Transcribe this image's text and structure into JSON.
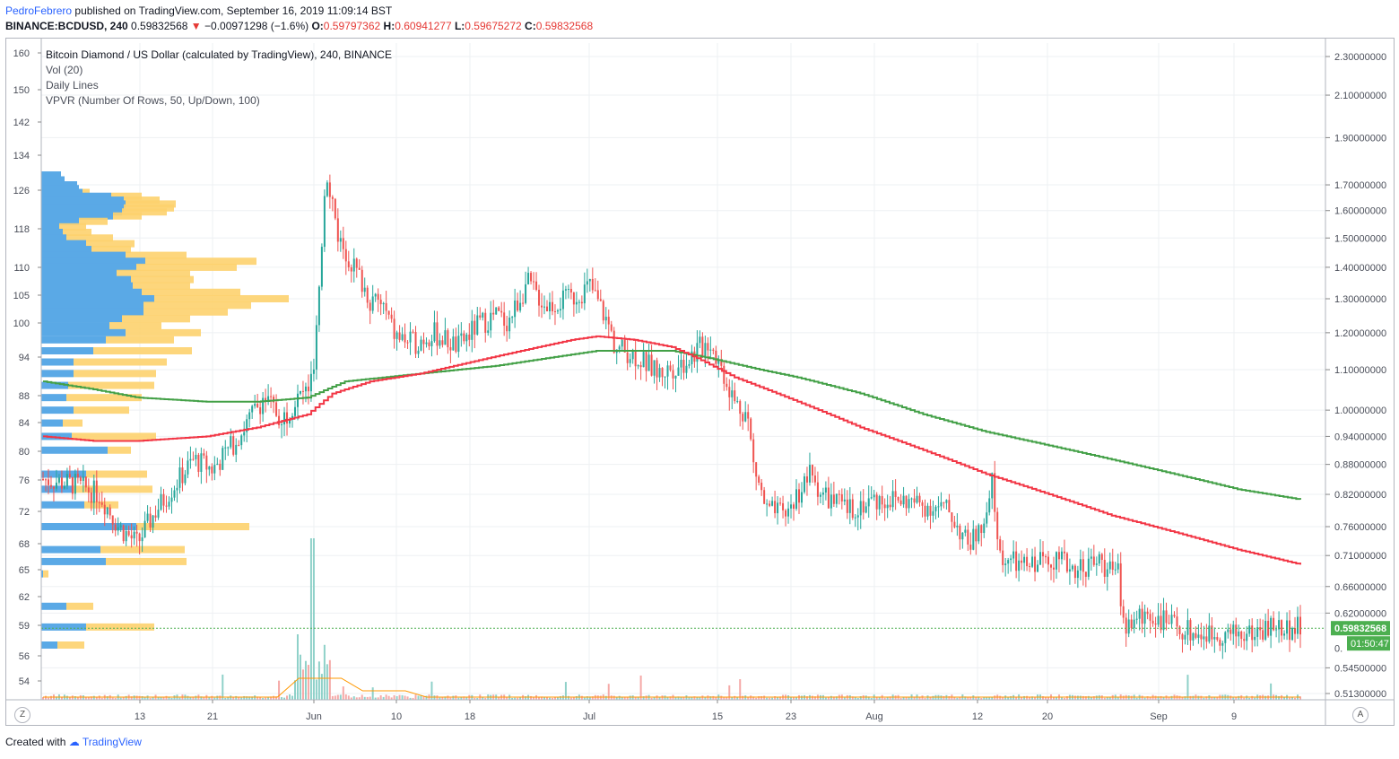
{
  "header": {
    "author": "PedroFebrero",
    "published": "published on TradingView.com, September 16, 2019 11:09:14 BST",
    "symbol": "BINANCE:BCDUSD, 240",
    "last": "0.59832568",
    "arrow": "▼",
    "change": "−0.00971298 (−1.6%)",
    "o_label": "O:",
    "o_value": "0.59797362",
    "h_label": "H:",
    "h_value": "0.60941277",
    "l_label": "L:",
    "l_value": "0.59675272",
    "c_label": "C:",
    "c_value": "0.59832568"
  },
  "legend": {
    "title": "Bitcoin Diamond / US Dollar (calculated by TradingView), 240, BINANCE",
    "vol": "Vol (20)",
    "lines": "Daily Lines",
    "vpvr": "VPVR (Number Of Rows, 50, Up/Down, 100)"
  },
  "footer": {
    "created": "Created with",
    "brand": "TradingView"
  },
  "corner_left": "Z",
  "corner_right": "A",
  "colors": {
    "up": "#26a69a",
    "down": "#ef5350",
    "ma_red": "#f23645",
    "ma_green": "#43a047",
    "vp_up": "#5aa9e6",
    "vp_down": "#fdd26e",
    "price_tag": "#4caf50"
  },
  "chart_data": {
    "type": "candlestick",
    "title": "Bitcoin Diamond / US Dollar (calculated by TradingView), 240, BINANCE",
    "left_axis_ticks": [
      "160",
      "150",
      "142",
      "134",
      "126",
      "118",
      "110",
      "105",
      "100",
      "94",
      "88",
      "84",
      "80",
      "76",
      "72",
      "68",
      "65",
      "62",
      "59",
      "56",
      "54"
    ],
    "right_axis_ticks": [
      "2.30000000",
      "2.10000000",
      "1.90000000",
      "1.70000000",
      "1.60000000",
      "1.50000000",
      "1.40000000",
      "1.30000000",
      "1.20000000",
      "1.10000000",
      "1.00000000",
      "0.94000000",
      "0.88000000",
      "0.82000000",
      "0.76000000",
      "0.71000000",
      "0.66000000",
      "0.62000000",
      "0.54500000",
      "0.51300000"
    ],
    "right_axis_partial": "0.",
    "x_ticks": [
      "13",
      "21",
      "Jun",
      "10",
      "18",
      "Jul",
      "15",
      "23",
      "Aug",
      "12",
      "20",
      "Sep",
      "9"
    ],
    "last_price": "0.59832568",
    "countdown": "01:50:47",
    "price_path": [
      [
        0,
        0.85
      ],
      [
        0.025,
        0.84
      ],
      [
        0.045,
        0.82
      ],
      [
        0.06,
        0.76
      ],
      [
        0.075,
        0.73
      ],
      [
        0.09,
        0.79
      ],
      [
        0.105,
        0.84
      ],
      [
        0.12,
        0.89
      ],
      [
        0.135,
        0.87
      ],
      [
        0.15,
        0.92
      ],
      [
        0.16,
        0.96
      ],
      [
        0.175,
        1.03
      ],
      [
        0.19,
        0.98
      ],
      [
        0.2,
        1.02
      ],
      [
        0.21,
        1.05
      ],
      [
        0.215,
        1.08
      ],
      [
        0.22,
        1.32
      ],
      [
        0.225,
        1.78
      ],
      [
        0.235,
        1.5
      ],
      [
        0.25,
        1.38
      ],
      [
        0.26,
        1.3
      ],
      [
        0.27,
        1.28
      ],
      [
        0.28,
        1.19
      ],
      [
        0.295,
        1.17
      ],
      [
        0.31,
        1.2
      ],
      [
        0.33,
        1.16
      ],
      [
        0.345,
        1.22
      ],
      [
        0.36,
        1.25
      ],
      [
        0.37,
        1.23
      ],
      [
        0.385,
        1.35
      ],
      [
        0.4,
        1.28
      ],
      [
        0.42,
        1.3
      ],
      [
        0.435,
        1.34
      ],
      [
        0.45,
        1.22
      ],
      [
        0.455,
        1.16
      ],
      [
        0.47,
        1.14
      ],
      [
        0.49,
        1.09
      ],
      [
        0.51,
        1.12
      ],
      [
        0.53,
        1.18
      ],
      [
        0.54,
        1.1
      ],
      [
        0.55,
        1.02
      ],
      [
        0.56,
        0.99
      ],
      [
        0.565,
        0.88
      ],
      [
        0.575,
        0.79
      ],
      [
        0.59,
        0.78
      ],
      [
        0.6,
        0.82
      ],
      [
        0.61,
        0.86
      ],
      [
        0.62,
        0.82
      ],
      [
        0.64,
        0.79
      ],
      [
        0.66,
        0.81
      ],
      [
        0.68,
        0.81
      ],
      [
        0.7,
        0.8
      ],
      [
        0.72,
        0.79
      ],
      [
        0.735,
        0.73
      ],
      [
        0.75,
        0.76
      ],
      [
        0.755,
        0.85
      ],
      [
        0.76,
        0.71
      ],
      [
        0.78,
        0.69
      ],
      [
        0.8,
        0.71
      ],
      [
        0.82,
        0.69
      ],
      [
        0.84,
        0.7
      ],
      [
        0.855,
        0.68
      ],
      [
        0.86,
        0.6
      ],
      [
        0.88,
        0.62
      ],
      [
        0.9,
        0.6
      ],
      [
        0.92,
        0.59
      ],
      [
        0.94,
        0.59
      ],
      [
        0.96,
        0.59
      ],
      [
        0.975,
        0.6
      ],
      [
        1.0,
        0.598
      ]
    ],
    "ma_red": [
      [
        0,
        0.94
      ],
      [
        0.04,
        0.93
      ],
      [
        0.075,
        0.93
      ],
      [
        0.13,
        0.94
      ],
      [
        0.17,
        0.96
      ],
      [
        0.21,
        0.99
      ],
      [
        0.23,
        1.04
      ],
      [
        0.26,
        1.07
      ],
      [
        0.3,
        1.09
      ],
      [
        0.34,
        1.12
      ],
      [
        0.38,
        1.15
      ],
      [
        0.42,
        1.18
      ],
      [
        0.44,
        1.19
      ],
      [
        0.47,
        1.18
      ],
      [
        0.5,
        1.16
      ],
      [
        0.52,
        1.13
      ],
      [
        0.55,
        1.08
      ],
      [
        0.6,
        1.02
      ],
      [
        0.65,
        0.96
      ],
      [
        0.7,
        0.91
      ],
      [
        0.75,
        0.86
      ],
      [
        0.8,
        0.82
      ],
      [
        0.85,
        0.78
      ],
      [
        0.9,
        0.75
      ],
      [
        0.95,
        0.72
      ],
      [
        1.0,
        0.695
      ]
    ],
    "ma_green": [
      [
        0,
        1.07
      ],
      [
        0.04,
        1.05
      ],
      [
        0.075,
        1.03
      ],
      [
        0.13,
        1.02
      ],
      [
        0.17,
        1.02
      ],
      [
        0.21,
        1.03
      ],
      [
        0.24,
        1.07
      ],
      [
        0.3,
        1.09
      ],
      [
        0.36,
        1.11
      ],
      [
        0.4,
        1.13
      ],
      [
        0.44,
        1.15
      ],
      [
        0.47,
        1.15
      ],
      [
        0.5,
        1.15
      ],
      [
        0.53,
        1.13
      ],
      [
        0.57,
        1.1
      ],
      [
        0.6,
        1.08
      ],
      [
        0.65,
        1.04
      ],
      [
        0.7,
        0.99
      ],
      [
        0.75,
        0.95
      ],
      [
        0.8,
        0.92
      ],
      [
        0.85,
        0.89
      ],
      [
        0.9,
        0.86
      ],
      [
        0.95,
        0.83
      ],
      [
        1.0,
        0.81
      ]
    ],
    "volume_profile": [
      {
        "price": 1.74,
        "up": 22,
        "down": 0
      },
      {
        "price": 1.72,
        "up": 26,
        "down": 0
      },
      {
        "price": 1.7,
        "up": 40,
        "down": 0
      },
      {
        "price": 1.685,
        "up": 42,
        "down": 0
      },
      {
        "price": 1.67,
        "up": 46,
        "down": 8
      },
      {
        "price": 1.655,
        "up": 78,
        "down": 34
      },
      {
        "price": 1.64,
        "up": 92,
        "down": 40
      },
      {
        "price": 1.625,
        "up": 94,
        "down": 56
      },
      {
        "price": 1.61,
        "up": 92,
        "down": 56
      },
      {
        "price": 1.595,
        "up": 90,
        "down": 50
      },
      {
        "price": 1.58,
        "up": 80,
        "down": 32
      },
      {
        "price": 1.56,
        "up": 42,
        "down": 32
      },
      {
        "price": 1.54,
        "up": 20,
        "down": 30
      },
      {
        "price": 1.52,
        "up": 24,
        "down": 32
      },
      {
        "price": 1.5,
        "up": 28,
        "down": 52
      },
      {
        "price": 1.48,
        "up": 50,
        "down": 54
      },
      {
        "price": 1.46,
        "up": 56,
        "down": 44
      },
      {
        "price": 1.44,
        "up": 94,
        "down": 68
      },
      {
        "price": 1.42,
        "up": 116,
        "down": 124
      },
      {
        "price": 1.4,
        "up": 106,
        "down": 112
      },
      {
        "price": 1.38,
        "up": 84,
        "down": 82
      },
      {
        "price": 1.36,
        "up": 100,
        "down": 70
      },
      {
        "price": 1.34,
        "up": 102,
        "down": 64
      },
      {
        "price": 1.32,
        "up": 112,
        "down": 110
      },
      {
        "price": 1.3,
        "up": 126,
        "down": 150
      },
      {
        "price": 1.28,
        "up": 114,
        "down": 120
      },
      {
        "price": 1.26,
        "up": 114,
        "down": 94
      },
      {
        "price": 1.24,
        "up": 90,
        "down": 76
      },
      {
        "price": 1.22,
        "up": 76,
        "down": 58
      },
      {
        "price": 1.2,
        "up": 94,
        "down": 84
      },
      {
        "price": 1.18,
        "up": 72,
        "down": 76
      },
      {
        "price": 1.15,
        "up": 58,
        "down": 110
      },
      {
        "price": 1.12,
        "up": 36,
        "down": 104
      },
      {
        "price": 1.09,
        "up": 36,
        "down": 92
      },
      {
        "price": 1.06,
        "up": 30,
        "down": 96
      },
      {
        "price": 1.03,
        "up": 28,
        "down": 84
      },
      {
        "price": 1.0,
        "up": 36,
        "down": 62
      },
      {
        "price": 0.97,
        "up": 24,
        "down": 22
      },
      {
        "price": 0.94,
        "up": 34,
        "down": 94
      },
      {
        "price": 0.91,
        "up": 74,
        "down": 26
      },
      {
        "price": 0.86,
        "up": 50,
        "down": 68
      },
      {
        "price": 0.83,
        "up": 36,
        "down": 88
      },
      {
        "price": 0.8,
        "up": 48,
        "down": 38
      },
      {
        "price": 0.76,
        "up": 106,
        "down": 126
      },
      {
        "price": 0.72,
        "up": 66,
        "down": 94
      },
      {
        "price": 0.7,
        "up": 72,
        "down": 90
      },
      {
        "price": 0.68,
        "up": 2,
        "down": 6
      },
      {
        "price": 0.63,
        "up": 28,
        "down": 30
      },
      {
        "price": 0.6,
        "up": 50,
        "down": 76
      },
      {
        "price": 0.575,
        "up": 18,
        "down": 30
      }
    ]
  }
}
